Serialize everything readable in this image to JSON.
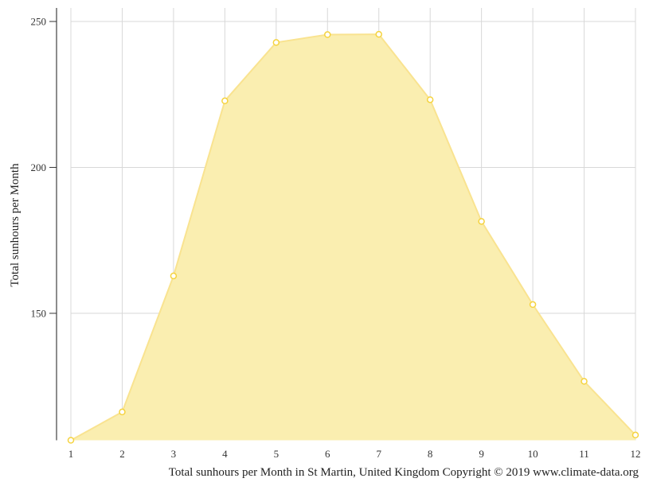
{
  "chart_data": {
    "type": "area",
    "title": "",
    "xlabel": "Total sunhours per Month in St Martin, United Kingdom Copyright © 2019 www.climate-data.org",
    "ylabel": "Total sunhours per Month",
    "categories": [
      "1",
      "2",
      "3",
      "4",
      "5",
      "6",
      "7",
      "8",
      "9",
      "10",
      "11",
      "12"
    ],
    "series": [
      {
        "name": "Total sunhours per Month",
        "values": [
          106.5,
          116.2,
          162.8,
          222.8,
          242.8,
          245.5,
          245.6,
          223.2,
          181.5,
          153.0,
          126.7,
          108.3
        ]
      }
    ],
    "yticks": [
      150,
      200,
      250
    ],
    "ylim": [
      106.5,
      254
    ],
    "grid": true,
    "legend": "none",
    "colors": {
      "fill": "#faeeb0",
      "line": "#f9e390",
      "marker_stroke": "#f5d33f",
      "marker_fill": "#ffffff",
      "grid": "#d8d8d8",
      "axis": "#666666"
    }
  }
}
